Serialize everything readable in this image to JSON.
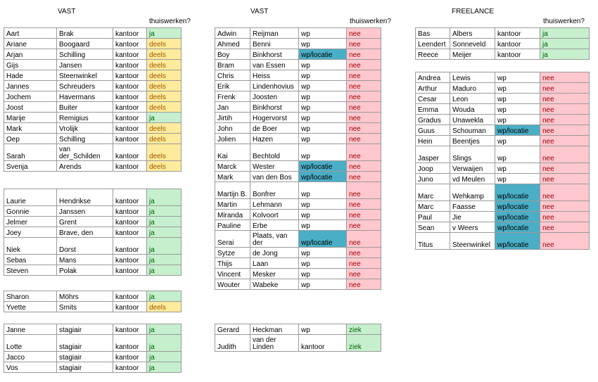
{
  "headers": {
    "vast_left": "VAST",
    "vast_mid": "VAST",
    "freelance": "FREELANCE",
    "thuiswerken": "thuiswerken?"
  },
  "tables": [
    {
      "id": "t1",
      "rows": [
        {
          "first": "Aart",
          "last": "Brak",
          "loc": "kantoor",
          "status": "ja"
        },
        {
          "first": "Ariane",
          "last": "Boogaard",
          "loc": "kantoor",
          "status": "deels"
        },
        {
          "first": "Arjan",
          "last": "Schilling",
          "loc": "kantoor",
          "status": "deels"
        },
        {
          "first": "Gijs",
          "last": "Jansen",
          "loc": "kantoor",
          "status": "deels"
        },
        {
          "first": "Hade",
          "last": "Steenwinkel",
          "loc": "kantoor",
          "status": "deels"
        },
        {
          "first": "Jannes",
          "last": "Schreuders",
          "loc": "kantoor",
          "status": "deels"
        },
        {
          "first": "Jochem",
          "last": "Havermans",
          "loc": "kantoor",
          "status": "deels"
        },
        {
          "first": "Joost",
          "last": "Buiter",
          "loc": "kantoor",
          "status": "deels"
        },
        {
          "first": "Marije",
          "last": "Remigius",
          "loc": "kantoor",
          "status": "ja"
        },
        {
          "first": "Mark",
          "last": "Vrolijk",
          "loc": "kantoor",
          "status": "deels"
        },
        {
          "first": "Oep",
          "last": "Schilling",
          "loc": "kantoor",
          "status": "deels"
        },
        {
          "first": "Sarah",
          "last": "van der_Schilden",
          "loc": "kantoor",
          "status": "deels",
          "tall": true
        },
        {
          "first": "Svenja",
          "last": "Arends",
          "loc": "kantoor",
          "status": "deels"
        }
      ]
    },
    {
      "id": "t2",
      "rows": [
        {
          "first": "Laurie",
          "last": "Hendrikse",
          "loc": "kantoor",
          "status": "ja",
          "tall": true
        },
        {
          "first": "Gonnie",
          "last": "Janssen",
          "loc": "kantoor",
          "status": "ja"
        },
        {
          "first": "Jelmer",
          "last": "Grent",
          "loc": "kantoor",
          "status": "ja"
        },
        {
          "first": "Joey",
          "last": "Brave, den",
          "loc": "kantoor",
          "status": "ja"
        },
        {
          "first": "Niek",
          "last": "Dorst",
          "loc": "kantoor",
          "status": "ja",
          "tall": true
        },
        {
          "first": "Sebas",
          "last": "Mans",
          "loc": "kantoor",
          "status": "ja"
        },
        {
          "first": "Steven",
          "last": "Polak",
          "loc": "kantoor",
          "status": "ja"
        }
      ]
    },
    {
      "id": "t3",
      "rows": [
        {
          "first": "Sharon",
          "last": "Möhrs",
          "loc": "kantoor",
          "status": "ja"
        },
        {
          "first": "Yvette",
          "last": "Smits",
          "loc": "kantoor",
          "status": "deels"
        }
      ]
    },
    {
      "id": "t4",
      "rows": [
        {
          "first": "Janne",
          "last": "stagiair",
          "loc": "kantoor",
          "status": "ja"
        },
        {
          "first": "Lotte",
          "last": "stagiair",
          "loc": "kantoor",
          "status": "ja",
          "tall": true
        },
        {
          "first": "Jacco",
          "last": "stagiair",
          "loc": "kantoor",
          "status": "ja"
        },
        {
          "first": "Vos",
          "last": "stagiair",
          "loc": "kantoor",
          "status": "ja"
        }
      ]
    },
    {
      "id": "t5",
      "rows": [
        {
          "first": "Adwin",
          "last": "Reijman",
          "loc": "wp",
          "status": "nee"
        },
        {
          "first": "Ahmed",
          "last": "Benni",
          "loc": "wp",
          "status": "nee"
        },
        {
          "first": "Boy",
          "last": "Binkhorst",
          "loc": "wp/locatie",
          "status": "nee"
        },
        {
          "first": "Bram",
          "last": "van Essen",
          "loc": "wp",
          "status": "nee"
        },
        {
          "first": "Chris",
          "last": "Heiss",
          "loc": "wp",
          "status": "nee"
        },
        {
          "first": "Erik",
          "last": "Lindenhovius",
          "loc": "wp",
          "status": "nee"
        },
        {
          "first": "Frenk",
          "last": "Joosten",
          "loc": "wp",
          "status": "nee"
        },
        {
          "first": "Jan",
          "last": "Binkhorst",
          "loc": "wp",
          "status": "nee"
        },
        {
          "first": "Jirtih",
          "last": "Hogervorst",
          "loc": "wp",
          "status": "nee"
        },
        {
          "first": "John",
          "last": "de Boer",
          "loc": "wp",
          "status": "nee"
        },
        {
          "first": "Jolien",
          "last": "Hazen",
          "loc": "wp",
          "status": "nee"
        },
        {
          "first": "Kai",
          "last": "Bechtold",
          "loc": "wp",
          "status": "nee",
          "tall": true
        },
        {
          "first": "Marck",
          "last": "Wester",
          "loc": "wp/locatie",
          "status": "nee"
        },
        {
          "first": "Mark",
          "last": "van den Bos",
          "loc": "wp/locatie",
          "status": "nee"
        },
        {
          "first": "Martijn B.",
          "last": "Bonfrer",
          "loc": "wp",
          "status": "nee",
          "tall": true
        },
        {
          "first": "Martin",
          "last": "Lehmann",
          "loc": "wp",
          "status": "nee"
        },
        {
          "first": "Miranda",
          "last": "Kolvoort",
          "loc": "wp",
          "status": "nee"
        },
        {
          "first": "Pauline",
          "last": "Erbe",
          "loc": "wp",
          "status": "nee"
        },
        {
          "first": "Serai",
          "last": "Plaats, van der",
          "loc": "wp/locatie",
          "status": "nee",
          "tall": true
        },
        {
          "first": "Sytze",
          "last": "de Jong",
          "loc": "wp",
          "status": "nee"
        },
        {
          "first": "Thijs",
          "last": "Laan",
          "loc": "wp",
          "status": "nee"
        },
        {
          "first": "Vincent",
          "last": "Mesker",
          "loc": "wp",
          "status": "nee"
        },
        {
          "first": "Wouter",
          "last": "Wabeke",
          "loc": "wp",
          "status": "nee"
        }
      ]
    },
    {
      "id": "t6",
      "rows": [
        {
          "first": "Gerard",
          "last": "Heckman",
          "loc": "wp",
          "status": "ziek"
        },
        {
          "first": "Judith",
          "last": "van der Linden",
          "loc": "kantoor",
          "status": "ziek",
          "tall": true
        }
      ]
    },
    {
      "id": "t7",
      "rows": [
        {
          "first": "Bas",
          "last": "Albers",
          "loc": "kantoor",
          "status": "ja"
        },
        {
          "first": "Leendert",
          "last": "Sonneveld",
          "loc": "kantoor",
          "status": "ja"
        },
        {
          "first": "Reece",
          "last": "Meijer",
          "loc": "kantoor",
          "status": "ja"
        }
      ]
    },
    {
      "id": "t8",
      "rows": [
        {
          "first": "Andrea",
          "last": "Lewis",
          "loc": "wp",
          "status": "nee"
        },
        {
          "first": "Arthur",
          "last": "Maduro",
          "loc": "wp",
          "status": "nee"
        },
        {
          "first": "Cesar",
          "last": "Leon",
          "loc": "wp",
          "status": "nee"
        },
        {
          "first": "Emma",
          "last": "Wouda",
          "loc": "wp",
          "status": "nee"
        },
        {
          "first": "Gradus",
          "last": "Unawekla",
          "loc": "wp",
          "status": "nee"
        },
        {
          "first": "Guus",
          "last": "Schouman",
          "loc": "wp/locatie",
          "status": "nee"
        },
        {
          "first": "Hein",
          "last": "Beentjes",
          "loc": "wp",
          "status": "nee"
        },
        {
          "first": "Jasper",
          "last": "Slings",
          "loc": "wp",
          "status": "nee",
          "tall": true
        },
        {
          "first": "Joop",
          "last": "Verwaijen",
          "loc": "wp",
          "status": "nee"
        },
        {
          "first": "Juno",
          "last": "vd Meulen",
          "loc": "wp",
          "status": "nee"
        },
        {
          "first": "Marc",
          "last": "Wehkamp",
          "loc": "wp/locatie",
          "status": "nee",
          "tall": true
        },
        {
          "first": "Marc",
          "last": "Faasse",
          "loc": "wp/locatie",
          "status": "nee"
        },
        {
          "first": "Paul",
          "last": "Jie",
          "loc": "wp/locatie",
          "status": "nee"
        },
        {
          "first": "Sean",
          "last": "v Weers",
          "loc": "wp/locatie",
          "status": "nee"
        },
        {
          "first": "Titus",
          "last": "Steenwinkel",
          "loc": "wp/locatie",
          "status": "nee",
          "tall": true
        }
      ]
    }
  ]
}
